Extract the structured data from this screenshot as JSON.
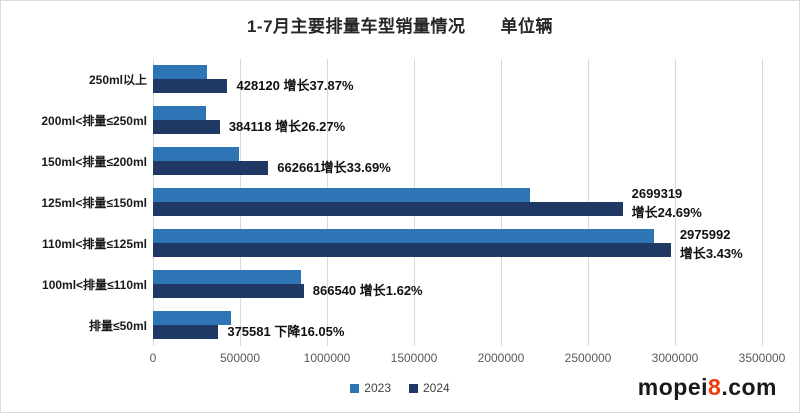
{
  "title": "1-7月主要排量车型销量情况　　单位辆",
  "watermark": {
    "prefix": "mopei",
    "highlight": "8",
    "suffix": ".com"
  },
  "colors": {
    "bar_2023": "#2E75B6",
    "bar_2024": "#1F3864",
    "gridline": "#d9d9d9",
    "tick_text": "#595959",
    "label_text": "#111111",
    "watermark_highlight": "#ee3a0c"
  },
  "chart_data": {
    "type": "bar",
    "orientation": "horizontal",
    "title": "1-7月主要排量车型销量情况 单位辆",
    "categories": [
      "250ml以上",
      "200ml<排量≤250ml",
      "150ml<排量≤200ml",
      "125ml<排量≤150ml",
      "110ml<排量≤125ml",
      "100ml<排量≤110ml",
      "排量≤50ml"
    ],
    "series": [
      {
        "name": "2023",
        "color": "#2E75B6",
        "values": [
          310526,
          304203,
          495670,
          2164824,
          2877300,
          852726,
          447387
        ]
      },
      {
        "name": "2024",
        "color": "#1F3864",
        "values": [
          428120,
          384118,
          662661,
          2699319,
          2975992,
          866540,
          375581
        ]
      }
    ],
    "data_labels": [
      "428120  增长37.87%",
      "384118  增长26.27%",
      "662661增长33.69%",
      "2699319\n增长24.69%",
      "2975992\n增长3.43%",
      "866540  增长1.62%",
      "375581 下降16.05%"
    ],
    "xlim": [
      0,
      3500000
    ],
    "x_ticks": [
      0,
      500000,
      1000000,
      1500000,
      2000000,
      2500000,
      3000000,
      3500000
    ],
    "grid": true,
    "legend_position": "bottom",
    "legend": [
      "2023",
      "2024"
    ]
  }
}
